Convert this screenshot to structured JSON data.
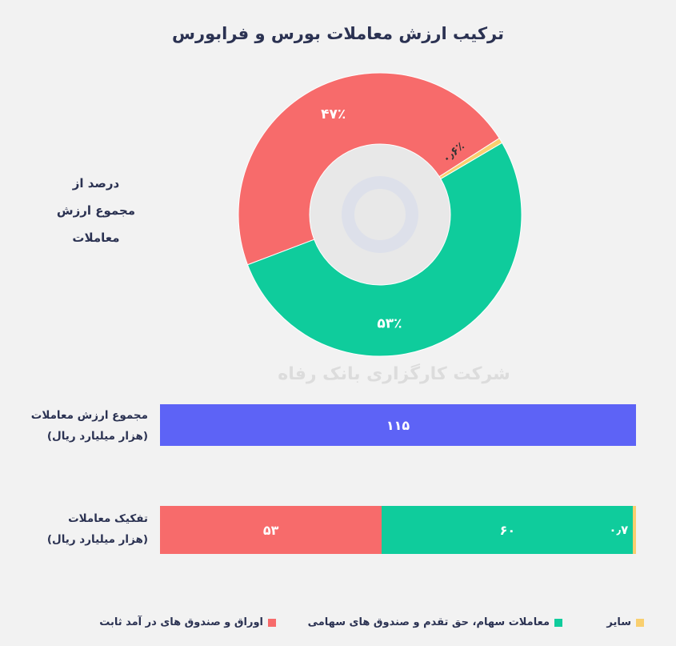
{
  "title": "ترکیب ارزش معاملات بورس و فرابورس",
  "side_label": {
    "line1": "درصد از",
    "line2": "مجموع ارزش",
    "line3": "معاملات"
  },
  "watermark": "شرکت کارگزاری بانک رفاه",
  "total_row": {
    "label_line1": "مجموع ارزش معاملات",
    "label_line2": "(هزار میلیارد ریال)",
    "value_text": "۱۱۵"
  },
  "breakdown_row": {
    "label_line1": "تفکیک معاملات",
    "label_line2": "(هزار میلیارد ریال)"
  },
  "colors": {
    "fixed_income": "#f76b6b",
    "equities": "#0fcc9c",
    "other": "#f9cf6f",
    "total": "#5d63f6",
    "background": "#f2f2f2",
    "title_text": "#2b3252"
  },
  "chart_data": [
    {
      "type": "pie",
      "variant": "donut",
      "title": "ترکیب ارزش معاملات بورس و فرابورس",
      "categories": [
        "اوراق و صندوق های در آمد ثابت",
        "معاملات سهام، حق تقدم و صندوق های سهامی",
        "سایر"
      ],
      "values": [
        47,
        53,
        0.6
      ],
      "labels": [
        "۴۷٪",
        "۵۳٪",
        "۰٫۶٪"
      ],
      "unit": "%"
    },
    {
      "type": "bar",
      "orientation": "horizontal",
      "stacked": false,
      "categories": [
        "مجموع ارزش معاملات"
      ],
      "values": [
        115
      ],
      "labels": [
        "۱۱۵"
      ],
      "unit": "هزار میلیارد ریال"
    },
    {
      "type": "bar",
      "orientation": "horizontal",
      "stacked": true,
      "categories": [
        "تفکیک معاملات"
      ],
      "series": [
        {
          "name": "اوراق و صندوق های در آمد ثابت",
          "values": [
            53
          ],
          "label": "۵۳"
        },
        {
          "name": "معاملات سهام، حق تقدم و صندوق های سهامی",
          "values": [
            60
          ],
          "label": "۶۰"
        },
        {
          "name": "سایر",
          "values": [
            0.7
          ],
          "label": "۰٫۷"
        }
      ],
      "unit": "هزار میلیارد ریال"
    }
  ],
  "legend": [
    {
      "label": "اوراق و صندوق های در آمد ثابت",
      "color": "#f76b6b"
    },
    {
      "label": "معاملات سهام، حق تقدم و صندوق های سهامی",
      "color": "#0fcc9c"
    },
    {
      "label": "سایر",
      "color": "#f9cf6f"
    }
  ]
}
